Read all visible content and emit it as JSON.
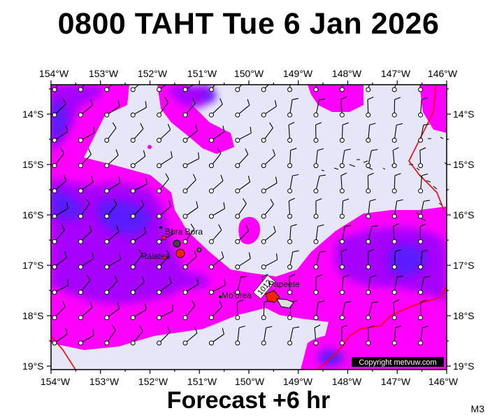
{
  "title": "0800 TAHT Tue 6 Jan 2026",
  "footer": "Forecast +6 hr",
  "model_tag": "M3",
  "copyright": "Copyright metvuw.com",
  "map": {
    "lon_range": [
      -154,
      -146
    ],
    "lat_range": [
      -19.1,
      -13.4
    ],
    "lon_ticks": [
      "154°W",
      "153°W",
      "152°W",
      "151°W",
      "150°W",
      "149°W",
      "148°W",
      "147°W",
      "146°W"
    ],
    "lat_ticks": [
      "14°S",
      "15°S",
      "16°S",
      "17°S",
      "18°S",
      "19°S"
    ],
    "colors": {
      "calm": "#e6e6f8",
      "moderate": "#ff00ff",
      "strong": "#a600ff",
      "very_strong": "#5a1bff",
      "land": "#dddddd",
      "zone_line": "#ff0000"
    },
    "places": [
      {
        "name": "Bora Bora",
        "lon": -151.75,
        "lat": -16.5
      },
      {
        "name": "Raiatea",
        "lon": -151.45,
        "lat": -16.8
      },
      {
        "name": "Mo'orea",
        "lon": -149.85,
        "lat": -17.55
      },
      {
        "name": "Papeete",
        "lon": -149.57,
        "lat": -17.53
      }
    ],
    "pressure_label": "1012"
  }
}
